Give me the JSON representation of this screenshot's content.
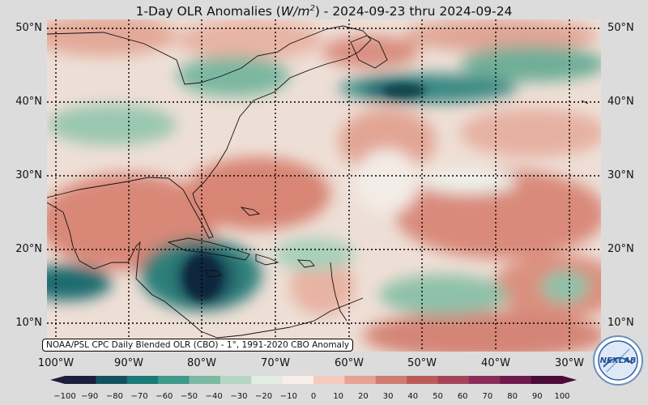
{
  "title": {
    "prefix": "1-Day OLR Anomalies (",
    "unit_base": "W/m",
    "unit_exp": "2",
    "suffix": ") - 2024-09-23 thru 2024-09-24"
  },
  "lat_labels": [
    "50°N",
    "40°N",
    "30°N",
    "20°N",
    "10°N"
  ],
  "lon_labels": [
    "100°W",
    "90°W",
    "80°W",
    "70°W",
    "60°W",
    "50°W",
    "40°W",
    "30°W"
  ],
  "credit": "NOAA/PSL CPC Daily Blended OLR (CBO) - 1°, 1991-2020 CBO Anomaly",
  "colorbar": {
    "ticks": [
      "−100",
      "−90",
      "−80",
      "−70",
      "−60",
      "−50",
      "−40",
      "−30",
      "−20",
      "−10",
      "0",
      "10",
      "20",
      "30",
      "40",
      "50",
      "60",
      "70",
      "80",
      "90",
      "100"
    ],
    "colors": [
      "#1c1f3b",
      "#14515e",
      "#1a7a77",
      "#3f9a8a",
      "#7ab9a2",
      "#b5d6c2",
      "#e2ede4",
      "#f7eee9",
      "#f2cbbd",
      "#e6a394",
      "#d07c70",
      "#bc5a5a",
      "#a4445a",
      "#8a2e59",
      "#6e1a4e",
      "#4a0c38"
    ]
  },
  "logo_text": "NEXLAB",
  "colors": {
    "background": "#dcdcdc",
    "strong_negative": "#1c3b4f",
    "positive": "#d78878"
  }
}
